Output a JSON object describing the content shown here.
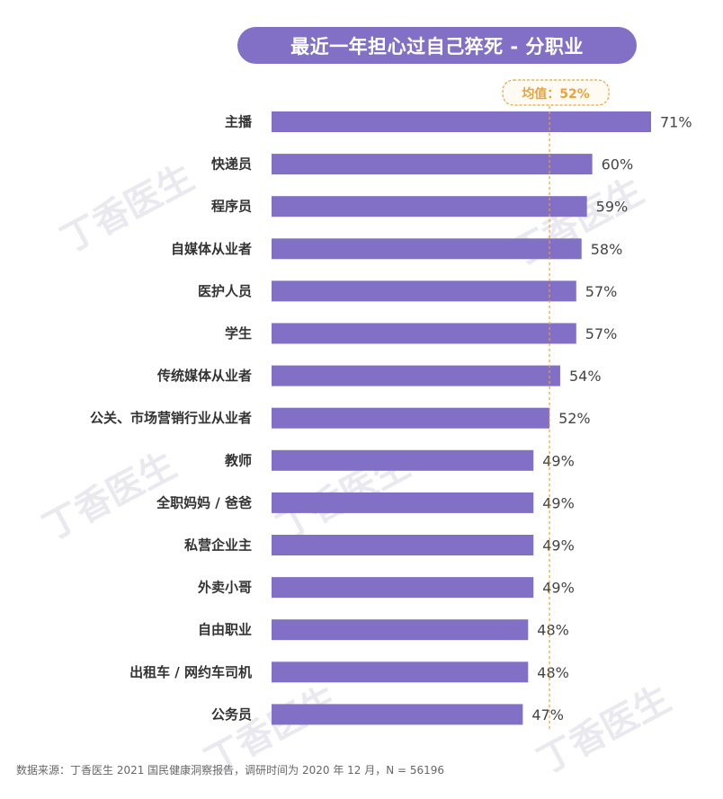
{
  "title": "最近一年担心过自己猝死 - 分职业",
  "watermark": "丁香医生",
  "footer": "数据来源：丁香医生 2021 国民健康洞察报告，调研时间为 2020 年 12 月，N = 56196",
  "colors": {
    "bar": "#8270c7",
    "accent": "#e8a33d",
    "title_bg": "#8270c7"
  },
  "chart_data": {
    "type": "bar",
    "orientation": "horizontal",
    "title": "最近一年担心过自己猝死 - 分职业",
    "categories": [
      "主播",
      "快递员",
      "程序员",
      "自媒体从业者",
      "医护人员",
      "学生",
      "传统媒体从业者",
      "公关、市场营销行业从业者",
      "教师",
      "全职妈妈 / 爸爸",
      "私营企业主",
      "外卖小哥",
      "自由职业",
      "出租车 / 网约车司机",
      "公务员"
    ],
    "values": [
      71,
      60,
      59,
      58,
      57,
      57,
      54,
      52,
      49,
      49,
      49,
      49,
      48,
      48,
      47
    ],
    "value_labels": [
      "71%",
      "60%",
      "59%",
      "58%",
      "57%",
      "57%",
      "54%",
      "52%",
      "49%",
      "49%",
      "49%",
      "49%",
      "48%",
      "48%",
      "47%"
    ],
    "reference_line": {
      "value": 52,
      "label": "均值：52%"
    },
    "xlim": [
      0,
      71
    ],
    "grid": false,
    "legend": "none"
  }
}
